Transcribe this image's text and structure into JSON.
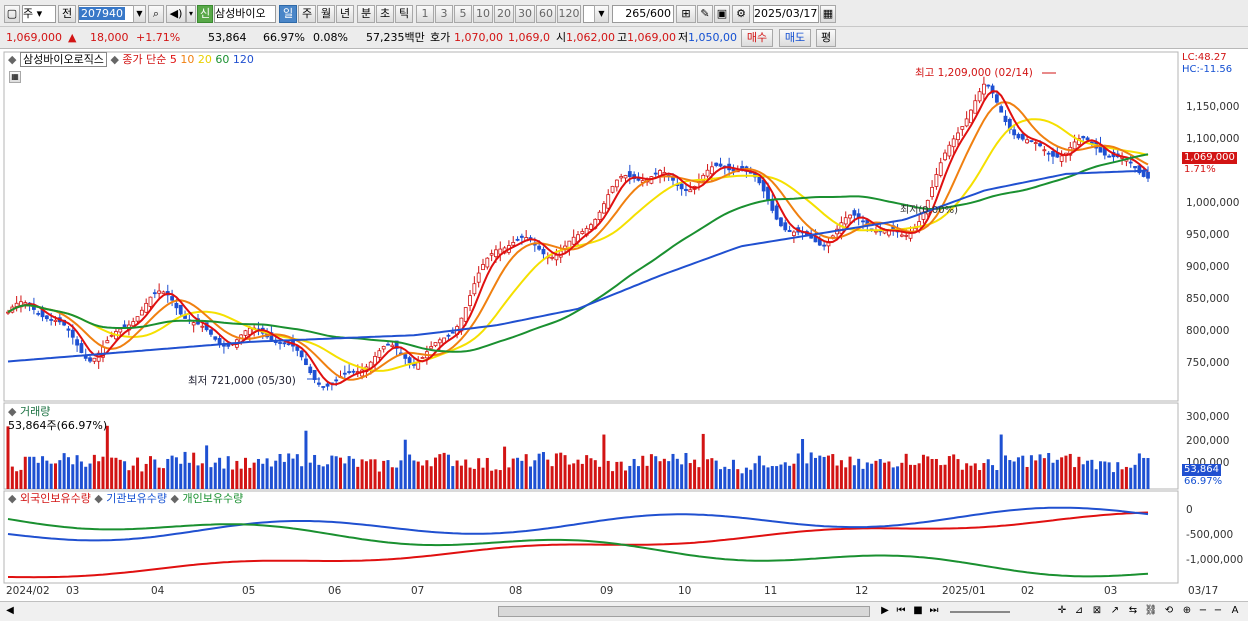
{
  "toolbar": {
    "market_select": "주",
    "prev_label": "전",
    "stock_code": "207940",
    "signal_label": "신",
    "stock_name": "삼성바이오",
    "periods": [
      "일",
      "주",
      "월",
      "년",
      "분",
      "초",
      "틱"
    ],
    "selected_period": "일",
    "intervals": [
      "1",
      "3",
      "5",
      "10",
      "20",
      "30",
      "60",
      "120"
    ],
    "count_value": "265",
    "count_total": "/600",
    "date_value": "2025/03/17"
  },
  "quote": {
    "price": "1,069,000",
    "change": "18,000",
    "change_pct": "+1.71%",
    "volume": "53,864",
    "volume_ratio": "66.97%",
    "turnover": "0.08%",
    "amount": "57,235백만",
    "ask_label": "호가",
    "ask": "1,070,00",
    "bid": "1,069,0",
    "open_label": "시",
    "open": "1,062,00",
    "high_label": "고",
    "high": "1,069,00",
    "low_label": "저",
    "low": "1,050,00",
    "buy_label": "매수",
    "sell_label": "매도",
    "avg_label": "평"
  },
  "price_panel": {
    "title": "삼성바이오로직스",
    "ma_label": "종가 단순",
    "ma_periods": [
      "5",
      "10",
      "20",
      "60",
      "120"
    ],
    "high_annotation": "최고 1,209,000 (02/14)",
    "low_annotation": "최저 721,000 (05/30)",
    "mid_annotation": "최저(0.00%)",
    "lc": "LC:48.27",
    "hc": "HC:-11.56",
    "current_tag": "1,069,000",
    "current_pct": "1.71%",
    "yticks": [
      "1,150,000",
      "1,100,000",
      "1,050,000",
      "1,000,000",
      "950,000",
      "900,000",
      "850,000",
      "800,000",
      "750,000"
    ]
  },
  "volume_panel": {
    "title": "거래량",
    "subtitle": "53,864주(66.97%)",
    "yticks": [
      "300,000",
      "200,000",
      "100,000"
    ],
    "current_tag": "53,864",
    "current_pct": "66.97%"
  },
  "holding_panel": {
    "legend": [
      "외국인보유수량",
      "기관보유수량",
      "개인보유수량"
    ],
    "yticks": [
      "0",
      "-500,000",
      "-1,000,000"
    ]
  },
  "xaxis": [
    "2024/02",
    "03",
    "04",
    "05",
    "06",
    "07",
    "08",
    "09",
    "10",
    "11",
    "12",
    "2025/01",
    "02",
    "03",
    "03/17"
  ],
  "colors": {
    "up": "#d21414",
    "down": "#1e50d2",
    "ma5": "#e01010",
    "ma10": "#f08010",
    "ma20": "#f5e000",
    "ma60": "#1a9030",
    "ma120": "#2050d0"
  },
  "chart_data": {
    "type": "line",
    "title": "삼성바이오로직스",
    "x": [
      "2024/02",
      "03",
      "04",
      "05",
      "06",
      "07",
      "08",
      "09",
      "10",
      "11",
      "12",
      "2025/01",
      "02",
      "03",
      "03/17"
    ],
    "series": [
      {
        "name": "종가",
        "values": [
          835000,
          790000,
          845000,
          790000,
          745000,
          760000,
          915000,
          960000,
          1055000,
          1035000,
          945000,
          965000,
          1160000,
          1070000,
          1069000
        ]
      },
      {
        "name": "120",
        "values": [
          760000,
          770000,
          780000,
          790000,
          795000,
          800000,
          815000,
          840000,
          890000,
          935000,
          955000,
          975000,
          1020000,
          1045000,
          1050000
        ]
      }
    ],
    "ylim": [
      720000,
      1210000
    ]
  }
}
